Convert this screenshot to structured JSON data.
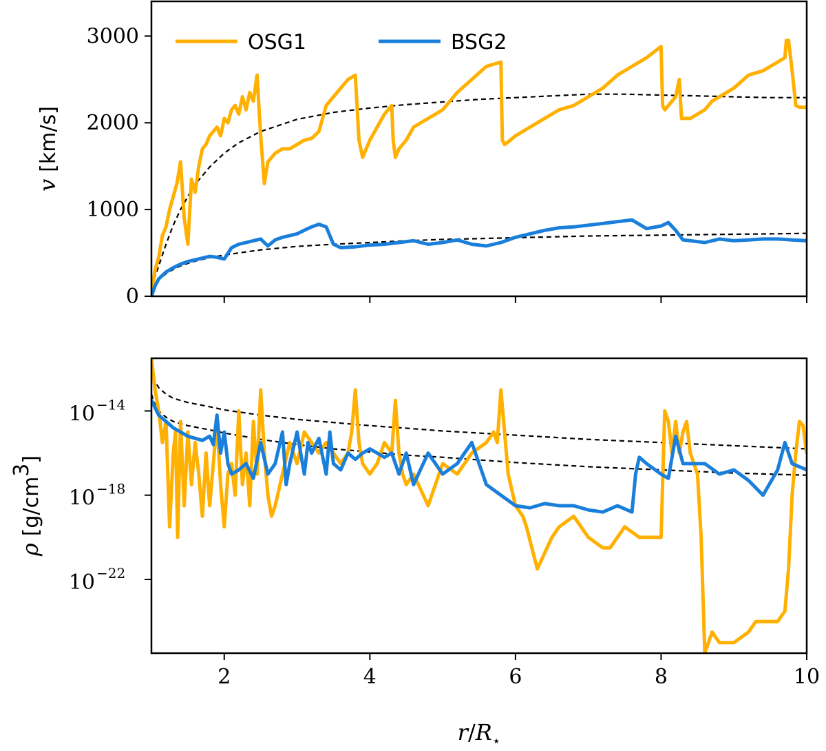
{
  "chart_data": [
    {
      "panel": "top",
      "type": "line",
      "xlim": [
        1,
        10
      ],
      "ylim": [
        0,
        3400
      ],
      "yscale": "linear",
      "ylabel_symbol": "v",
      "ylabel_unit": "[km/s]",
      "xticks": [
        "2",
        "4",
        "6",
        "8",
        "10"
      ],
      "xtick_values": [
        2,
        4,
        6,
        8,
        10
      ],
      "yticks": [
        "0",
        "1000",
        "2000",
        "3000"
      ],
      "ytick_values": [
        0,
        1000,
        2000,
        3000
      ],
      "legend": {
        "placement": "top-left",
        "entries": [
          "OSG1",
          "BSG2"
        ]
      },
      "series": [
        {
          "name": "OSG1",
          "color": "#ffb000",
          "x": [
            1.0,
            1.05,
            1.1,
            1.15,
            1.2,
            1.25,
            1.3,
            1.35,
            1.4,
            1.45,
            1.5,
            1.55,
            1.6,
            1.65,
            1.7,
            1.75,
            1.8,
            1.85,
            1.9,
            1.95,
            2.0,
            2.05,
            2.1,
            2.15,
            2.2,
            2.25,
            2.3,
            2.35,
            2.4,
            2.45,
            2.5,
            2.55,
            2.6,
            2.65,
            2.7,
            2.8,
            2.9,
            3.0,
            3.1,
            3.2,
            3.3,
            3.4,
            3.5,
            3.6,
            3.7,
            3.8,
            3.85,
            3.9,
            4.0,
            4.1,
            4.2,
            4.3,
            4.32,
            4.35,
            4.4,
            4.5,
            4.6,
            4.8,
            5.0,
            5.2,
            5.4,
            5.6,
            5.8,
            5.82,
            5.85,
            5.9,
            6.0,
            6.2,
            6.4,
            6.6,
            6.8,
            7.0,
            7.2,
            7.4,
            7.6,
            7.8,
            8.0,
            8.02,
            8.05,
            8.1,
            8.2,
            8.25,
            8.28,
            8.3,
            8.4,
            8.5,
            8.6,
            8.7,
            8.8,
            9.0,
            9.2,
            9.4,
            9.6,
            9.7,
            9.72,
            9.75,
            9.8,
            9.85,
            9.9,
            10.0
          ],
          "y": [
            50,
            300,
            450,
            700,
            800,
            1000,
            1150,
            1300,
            1550,
            900,
            600,
            1350,
            1200,
            1500,
            1700,
            1750,
            1850,
            1900,
            1950,
            1850,
            2050,
            2000,
            2150,
            2200,
            2100,
            2300,
            2150,
            2350,
            2250,
            2550,
            1850,
            1300,
            1550,
            1600,
            1650,
            1700,
            1700,
            1750,
            1800,
            1820,
            1900,
            2200,
            2300,
            2400,
            2500,
            2550,
            1800,
            1600,
            1800,
            1950,
            2100,
            2200,
            1800,
            1600,
            1700,
            1800,
            1950,
            2050,
            2150,
            2350,
            2500,
            2650,
            2700,
            1800,
            1750,
            1780,
            1850,
            1950,
            2050,
            2150,
            2200,
            2300,
            2400,
            2550,
            2650,
            2750,
            2880,
            2200,
            2150,
            2200,
            2300,
            2500,
            2050,
            2050,
            2050,
            2100,
            2150,
            2250,
            2300,
            2400,
            2550,
            2600,
            2700,
            2750,
            2950,
            2950,
            2600,
            2200,
            2180,
            2180
          ]
        },
        {
          "name": "BSG2",
          "color": "#1a7fdb",
          "x": [
            1.0,
            1.05,
            1.1,
            1.2,
            1.3,
            1.4,
            1.5,
            1.6,
            1.7,
            1.8,
            1.9,
            2.0,
            2.1,
            2.2,
            2.3,
            2.4,
            2.5,
            2.6,
            2.7,
            2.8,
            2.9,
            3.0,
            3.1,
            3.2,
            3.3,
            3.4,
            3.5,
            3.6,
            3.8,
            4.0,
            4.2,
            4.4,
            4.6,
            4.8,
            5.0,
            5.2,
            5.4,
            5.6,
            5.8,
            6.0,
            6.2,
            6.4,
            6.6,
            6.8,
            7.0,
            7.2,
            7.4,
            7.6,
            7.8,
            8.0,
            8.1,
            8.2,
            8.3,
            8.4,
            8.6,
            8.8,
            9.0,
            9.2,
            9.4,
            9.6,
            9.8,
            10.0
          ],
          "y": [
            0,
            120,
            200,
            280,
            330,
            370,
            400,
            420,
            440,
            460,
            450,
            430,
            560,
            600,
            620,
            640,
            660,
            580,
            650,
            680,
            700,
            720,
            760,
            800,
            830,
            800,
            600,
            560,
            570,
            590,
            600,
            620,
            640,
            600,
            620,
            650,
            600,
            580,
            620,
            680,
            720,
            760,
            790,
            800,
            820,
            840,
            860,
            880,
            780,
            810,
            850,
            760,
            650,
            640,
            620,
            660,
            640,
            650,
            660,
            660,
            650,
            640
          ]
        }
      ],
      "model_curves": [
        {
          "x": [
            1.0,
            1.1,
            1.2,
            1.3,
            1.4,
            1.5,
            1.6,
            1.8,
            2.0,
            2.2,
            2.5,
            3.0,
            3.5,
            4.0,
            4.5,
            5.0,
            5.5,
            6.0,
            6.5,
            7.0,
            7.5,
            8.0,
            8.5,
            9.0,
            9.5,
            10.0
          ],
          "y": [
            100,
            350,
            600,
            820,
            1000,
            1150,
            1290,
            1490,
            1650,
            1770,
            1900,
            2040,
            2120,
            2170,
            2210,
            2240,
            2270,
            2290,
            2310,
            2330,
            2330,
            2320,
            2310,
            2300,
            2290,
            2290
          ]
        },
        {
          "x": [
            1.0,
            1.1,
            1.2,
            1.3,
            1.4,
            1.5,
            1.6,
            1.8,
            2.0,
            2.2,
            2.5,
            3.0,
            3.5,
            4.0,
            4.5,
            5.0,
            5.5,
            6.0,
            6.5,
            7.0,
            7.5,
            8.0,
            8.5,
            9.0,
            9.5,
            10.0
          ],
          "y": [
            100,
            190,
            260,
            310,
            350,
            380,
            405,
            445,
            475,
            500,
            535,
            575,
            600,
            620,
            640,
            655,
            665,
            675,
            685,
            695,
            700,
            705,
            710,
            715,
            720,
            725
          ]
        }
      ]
    },
    {
      "panel": "bottom",
      "type": "line",
      "xlim": [
        1,
        10
      ],
      "ylim": [
        -25.5,
        -11.5
      ],
      "yscale": "log",
      "ylabel_symbol": "ρ",
      "ylabel_unit": "[g/cm",
      "ylabel_unit_exp": "3",
      "ylabel_unit_close": "]",
      "xlabel_r": "r",
      "xlabel_slash": "/",
      "xlabel_R": "R",
      "xlabel_sub": "⋆",
      "xticks": [
        "2",
        "4",
        "6",
        "8",
        "10"
      ],
      "xtick_values": [
        2,
        4,
        6,
        8,
        10
      ],
      "yticks": [
        {
          "base": "10",
          "exp": "−14",
          "value": -14
        },
        {
          "base": "10",
          "exp": "−18",
          "value": -18
        },
        {
          "base": "10",
          "exp": "−22",
          "value": -22
        }
      ],
      "series": [
        {
          "name": "OSG1",
          "color": "#ffb000",
          "x": [
            1.0,
            1.05,
            1.1,
            1.15,
            1.2,
            1.25,
            1.3,
            1.33,
            1.36,
            1.4,
            1.45,
            1.5,
            1.55,
            1.6,
            1.65,
            1.7,
            1.75,
            1.8,
            1.85,
            1.9,
            1.95,
            2.0,
            2.05,
            2.1,
            2.15,
            2.2,
            2.25,
            2.3,
            2.35,
            2.4,
            2.45,
            2.5,
            2.55,
            2.6,
            2.65,
            2.7,
            2.8,
            2.9,
            3.0,
            3.1,
            3.2,
            3.3,
            3.4,
            3.5,
            3.6,
            3.7,
            3.75,
            3.8,
            3.85,
            3.9,
            4.0,
            4.1,
            4.2,
            4.3,
            4.35,
            4.4,
            4.45,
            4.5,
            4.6,
            4.8,
            5.0,
            5.2,
            5.4,
            5.6,
            5.7,
            5.75,
            5.8,
            5.85,
            5.9,
            6.0,
            6.1,
            6.15,
            6.3,
            6.5,
            6.6,
            6.8,
            7.0,
            7.2,
            7.3,
            7.5,
            7.7,
            7.9,
            8.0,
            8.05,
            8.1,
            8.15,
            8.2,
            8.25,
            8.3,
            8.35,
            8.4,
            8.5,
            8.55,
            8.6,
            8.7,
            8.8,
            9.0,
            9.2,
            9.3,
            9.5,
            9.6,
            9.7,
            9.75,
            9.8,
            9.85,
            9.9,
            9.95,
            10.0
          ],
          "y": [
            -11.5,
            -13.0,
            -14.0,
            -15.5,
            -14.5,
            -19.5,
            -16.0,
            -15.0,
            -20.0,
            -14.5,
            -18.5,
            -15.0,
            -17.5,
            -15.5,
            -17.0,
            -19.0,
            -16.0,
            -18.5,
            -16.5,
            -14.5,
            -17.5,
            -19.5,
            -17.0,
            -16.5,
            -18.0,
            -14.0,
            -17.5,
            -16.0,
            -18.5,
            -14.5,
            -17.0,
            -13.0,
            -16.0,
            -18.0,
            -19.0,
            -18.5,
            -17.0,
            -15.5,
            -16.5,
            -15.0,
            -15.5,
            -16.0,
            -15.5,
            -16.0,
            -16.5,
            -16.0,
            -15.0,
            -13.0,
            -15.5,
            -16.5,
            -17.0,
            -16.5,
            -15.5,
            -16.0,
            -13.5,
            -16.0,
            -17.0,
            -17.5,
            -17.0,
            -18.5,
            -16.5,
            -17.0,
            -16.0,
            -15.5,
            -15.0,
            -15.5,
            -13.0,
            -15.0,
            -17.0,
            -18.5,
            -19.0,
            -19.5,
            -21.5,
            -20.0,
            -19.5,
            -19.0,
            -20.0,
            -20.5,
            -20.5,
            -19.5,
            -20.0,
            -20.0,
            -20.0,
            -14.0,
            -14.5,
            -16.0,
            -14.5,
            -16.0,
            -15.0,
            -14.5,
            -16.0,
            -17.0,
            -20.0,
            -25.5,
            -24.5,
            -25.0,
            -25.0,
            -24.5,
            -24.0,
            -24.0,
            -24.0,
            -23.5,
            -21.5,
            -18.0,
            -16.0,
            -14.5,
            -14.7,
            -16.0
          ]
        },
        {
          "name": "BSG2",
          "color": "#1a7fdb",
          "x": [
            1.0,
            1.1,
            1.2,
            1.3,
            1.4,
            1.5,
            1.6,
            1.7,
            1.8,
            1.85,
            1.9,
            1.95,
            2.0,
            2.05,
            2.1,
            2.2,
            2.3,
            2.4,
            2.5,
            2.6,
            2.7,
            2.8,
            2.85,
            2.9,
            3.0,
            3.1,
            3.15,
            3.2,
            3.3,
            3.4,
            3.45,
            3.5,
            3.6,
            3.7,
            3.8,
            3.9,
            4.0,
            4.1,
            4.2,
            4.3,
            4.4,
            4.5,
            4.6,
            4.8,
            5.0,
            5.2,
            5.4,
            5.5,
            5.6,
            5.8,
            6.0,
            6.2,
            6.4,
            6.6,
            6.8,
            7.0,
            7.2,
            7.4,
            7.6,
            7.65,
            7.7,
            7.8,
            8.0,
            8.1,
            8.2,
            8.3,
            8.4,
            8.6,
            8.8,
            9.0,
            9.2,
            9.4,
            9.6,
            9.7,
            9.8,
            10.0
          ],
          "y": [
            -13.5,
            -14.2,
            -14.5,
            -14.8,
            -15.0,
            -15.2,
            -15.3,
            -15.4,
            -15.2,
            -15.6,
            -14.2,
            -16.0,
            -15.0,
            -16.5,
            -17.0,
            -16.8,
            -16.5,
            -17.2,
            -15.5,
            -17.0,
            -16.5,
            -15.0,
            -17.5,
            -16.5,
            -15.0,
            -17.0,
            -15.5,
            -16.0,
            -15.3,
            -17.0,
            -15.0,
            -16.5,
            -16.8,
            -16.0,
            -16.3,
            -16.0,
            -15.8,
            -16.0,
            -16.2,
            -16.0,
            -17.0,
            -16.0,
            -17.5,
            -16.0,
            -17.0,
            -16.5,
            -15.5,
            -16.5,
            -17.5,
            -18.0,
            -18.5,
            -18.6,
            -18.4,
            -18.5,
            -18.5,
            -18.7,
            -18.8,
            -18.5,
            -18.8,
            -17.0,
            -16.2,
            -16.5,
            -17.0,
            -17.2,
            -15.2,
            -16.5,
            -16.5,
            -16.5,
            -17.0,
            -16.8,
            -17.3,
            -18.0,
            -16.8,
            -15.5,
            -16.5,
            -16.8
          ]
        }
      ],
      "model_curves": [
        {
          "x": [
            1.0,
            1.05,
            1.1,
            1.2,
            1.3,
            1.5,
            1.8,
            2.0,
            2.5,
            3.0,
            3.5,
            4.0,
            4.5,
            5.0,
            6.0,
            7.0,
            8.0,
            9.0,
            10.0
          ],
          "y": [
            -12.0,
            -12.6,
            -12.9,
            -13.2,
            -13.4,
            -13.6,
            -13.8,
            -13.95,
            -14.2,
            -14.4,
            -14.55,
            -14.7,
            -14.82,
            -14.95,
            -15.15,
            -15.35,
            -15.5,
            -15.65,
            -15.8
          ]
        },
        {
          "x": [
            1.0,
            1.05,
            1.1,
            1.2,
            1.3,
            1.5,
            1.8,
            2.0,
            2.5,
            3.0,
            3.5,
            4.0,
            4.5,
            5.0,
            6.0,
            7.0,
            8.0,
            9.0,
            10.0
          ],
          "y": [
            -13.2,
            -13.7,
            -14.0,
            -14.3,
            -14.5,
            -14.7,
            -14.9,
            -15.05,
            -15.35,
            -15.6,
            -15.8,
            -15.95,
            -16.1,
            -16.2,
            -16.45,
            -16.65,
            -16.8,
            -16.95,
            -17.05
          ]
        }
      ]
    }
  ]
}
